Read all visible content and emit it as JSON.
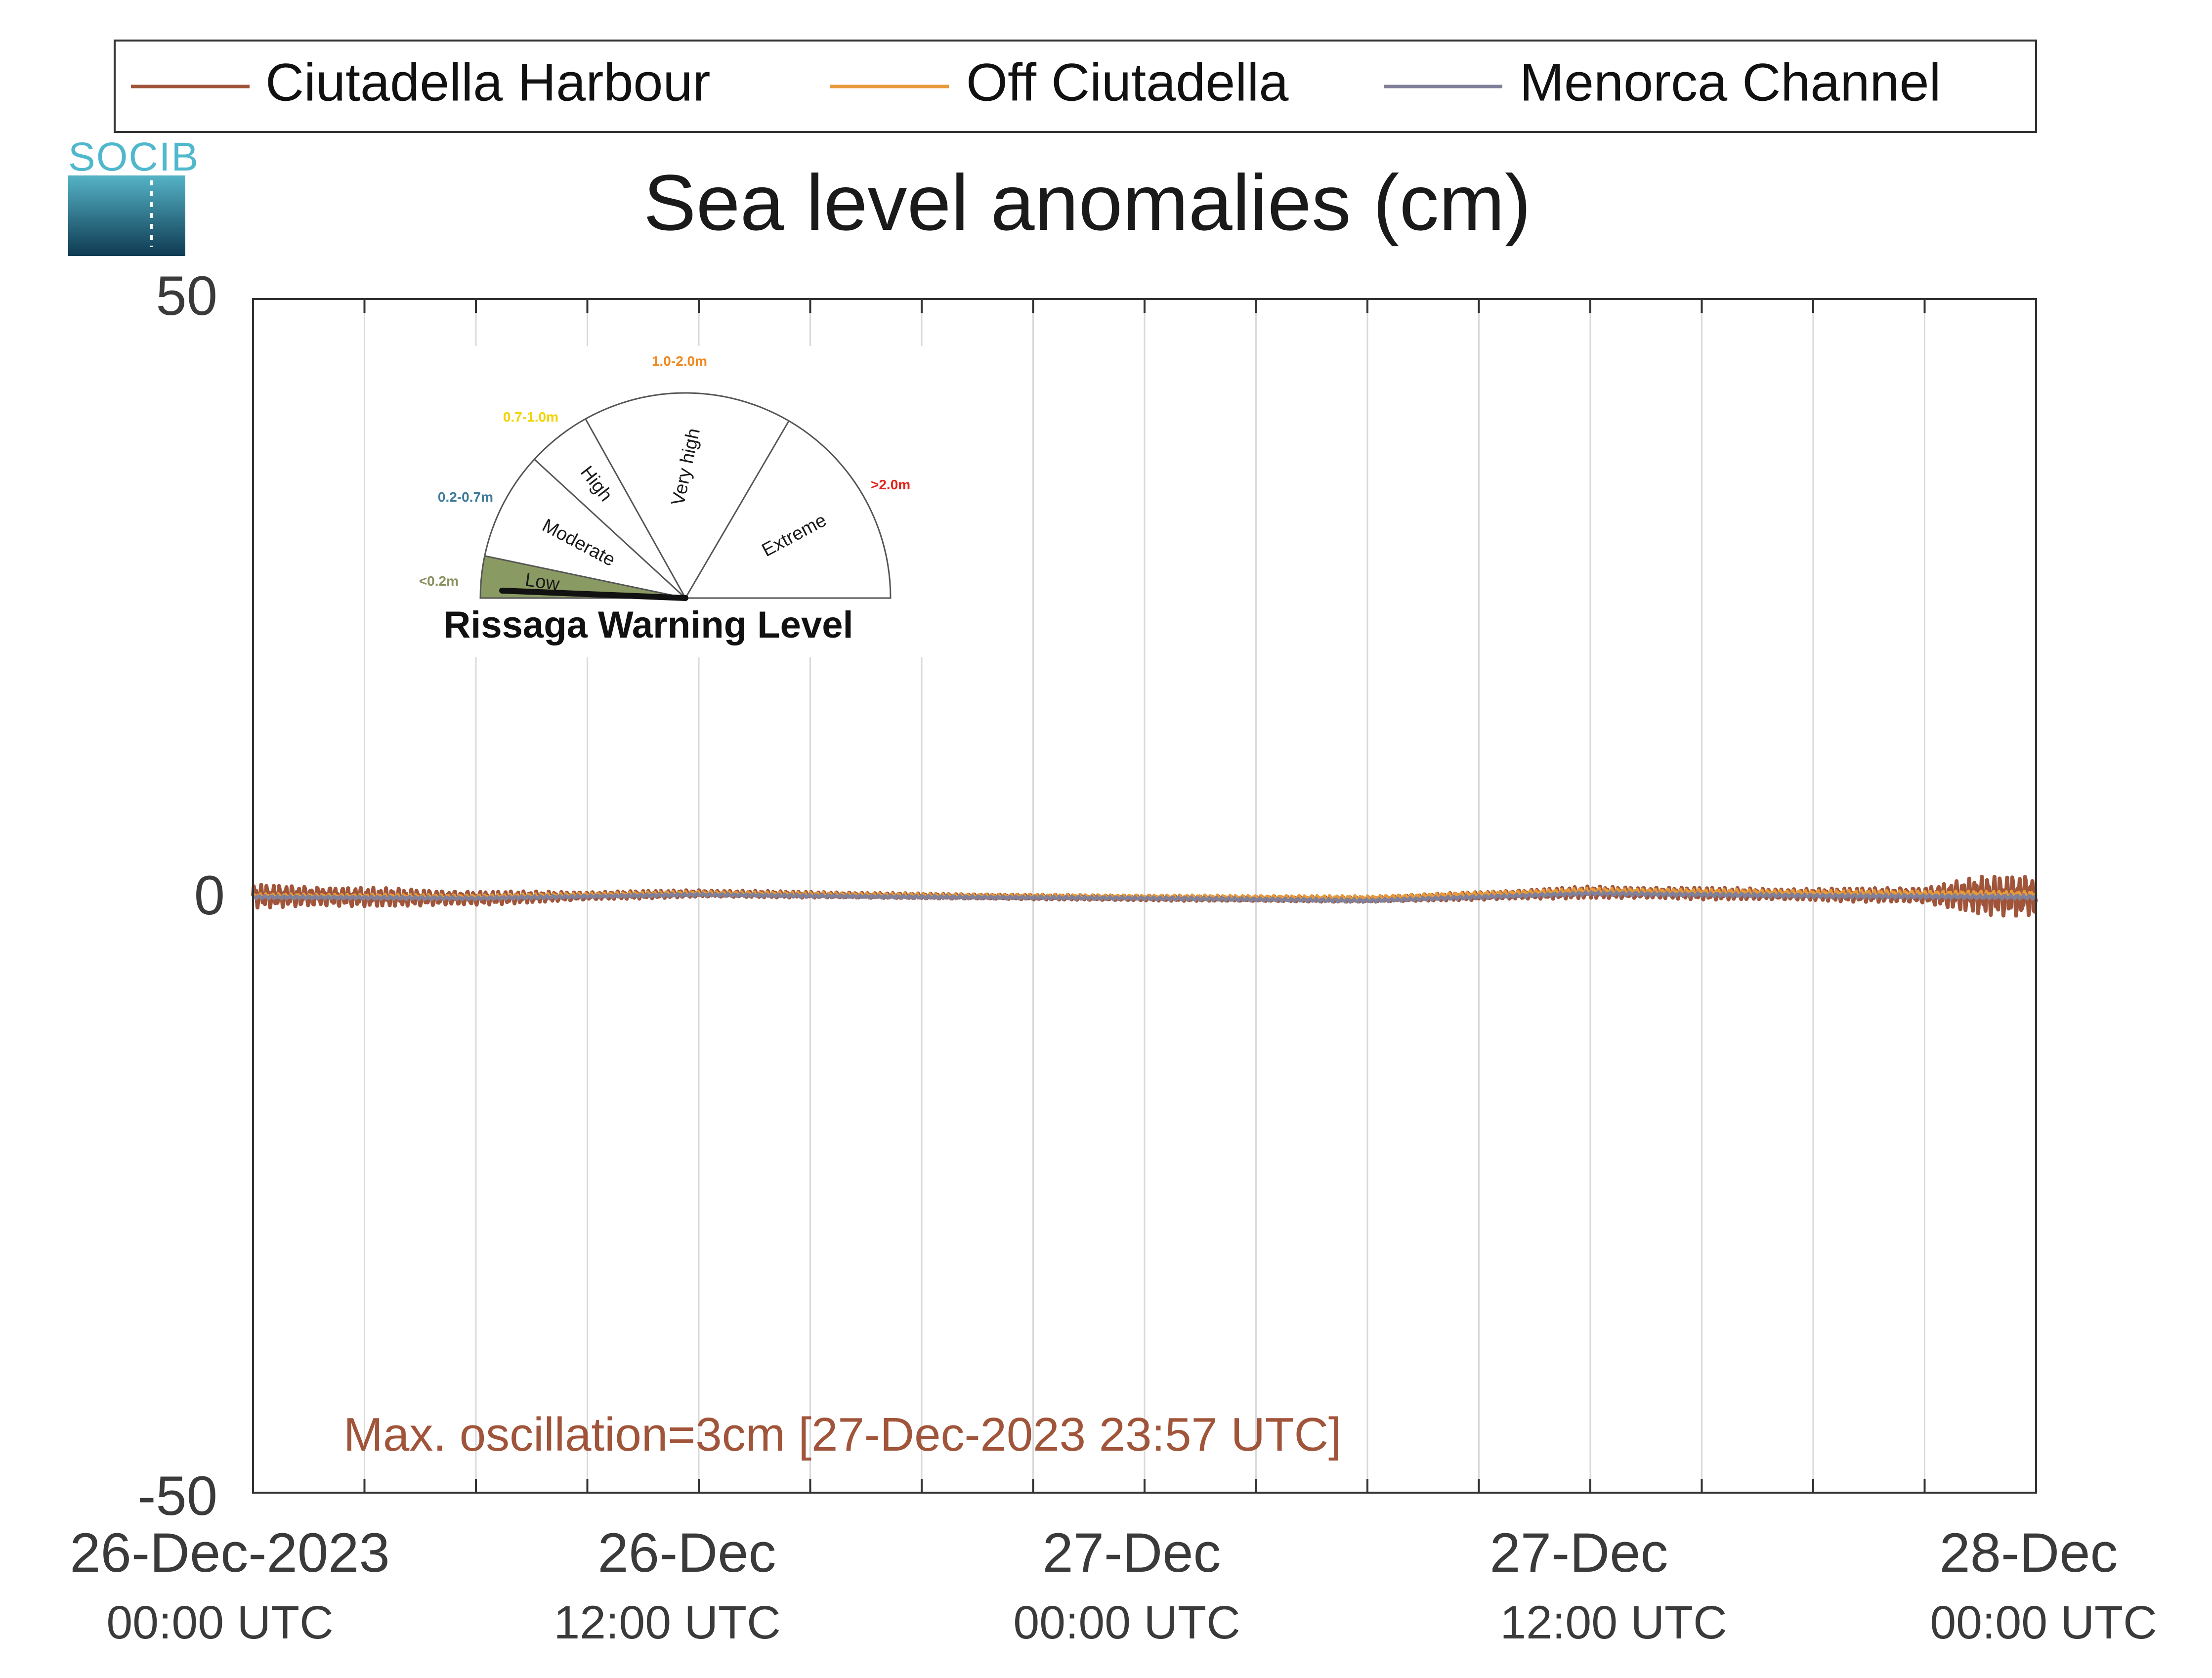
{
  "logo": {
    "text": "SOCIB"
  },
  "legend": {
    "items": [
      {
        "label": "Ciutadella Harbour",
        "color": "#a0553a"
      },
      {
        "label": "Off Ciutadella",
        "color": "#e89a3a"
      },
      {
        "label": "Menorca Channel",
        "color": "#80809a"
      }
    ]
  },
  "gauge": {
    "title": "Rissaga Warning Level",
    "sectors": [
      {
        "name": "Low",
        "range": "<0.2m",
        "range_color": "#8a8f5e",
        "fill": "#8a9a63",
        "active": true
      },
      {
        "name": "Moderate",
        "range": "0.2-0.7m",
        "range_color": "#3f7a9a",
        "fill": "#ffffff",
        "active": false
      },
      {
        "name": "High",
        "range": "0.7-1.0m",
        "range_color": "#f2d400",
        "fill": "#ffffff",
        "active": false
      },
      {
        "name": "Very high",
        "range": "1.0-2.0m",
        "range_color": "#f0891e",
        "fill": "#ffffff",
        "active": false
      },
      {
        "name": "Extreme",
        "range": ">2.0m",
        "range_color": "#e2231a",
        "fill": "#ffffff",
        "active": false
      }
    ]
  },
  "annotation": {
    "text": "Max. oscillation=3cm [27-Dec-2023 23:57 UTC]",
    "color": "#a0553a"
  },
  "chart_data": {
    "type": "line",
    "title": "Sea level anomalies (cm)",
    "xlabel": "",
    "ylabel": "",
    "ylim": [
      -50,
      50
    ],
    "xlim_hours": [
      0,
      48
    ],
    "y_ticks": [
      "50",
      "0",
      "-50"
    ],
    "y_tick_values": [
      50,
      0,
      -50
    ],
    "x_ticks": [
      {
        "hour": 0,
        "line1": "26-Dec-2023",
        "line2": "00:00 UTC"
      },
      {
        "hour": 12,
        "line1": "26-Dec",
        "line2": "12:00 UTC"
      },
      {
        "hour": 24,
        "line1": "27-Dec",
        "line2": "00:00 UTC"
      },
      {
        "hour": 36,
        "line1": "27-Dec",
        "line2": "12:00 UTC"
      },
      {
        "hour": 48,
        "line1": "28-Dec",
        "line2": "00:00 UTC"
      }
    ],
    "grid_vertical_every_hours": 3,
    "series": [
      {
        "name": "Ciutadella Harbour",
        "color": "#a0553a",
        "baseline": [
          [
            0,
            0
          ],
          [
            6,
            -0.2
          ],
          [
            12,
            0.2
          ],
          [
            18,
            0
          ],
          [
            24,
            -0.2
          ],
          [
            30,
            -0.3
          ],
          [
            36,
            0.3
          ],
          [
            42,
            0.1
          ],
          [
            48,
            0
          ]
        ],
        "oscillation_amplitude_cm": [
          [
            0,
            1.0
          ],
          [
            6,
            0.6
          ],
          [
            9,
            0.35
          ],
          [
            18,
            0.2
          ],
          [
            30,
            0.2
          ],
          [
            36,
            0.5
          ],
          [
            42,
            0.5
          ],
          [
            45,
            0.7
          ],
          [
            46.5,
            1.6
          ],
          [
            48,
            1.9
          ]
        ]
      },
      {
        "name": "Off Ciutadella",
        "color": "#e89a3a",
        "baseline": [
          [
            0,
            0
          ],
          [
            6,
            -0.1
          ],
          [
            12,
            0.2
          ],
          [
            18,
            0
          ],
          [
            24,
            -0.1
          ],
          [
            30,
            -0.2
          ],
          [
            36,
            0.4
          ],
          [
            42,
            0.2
          ],
          [
            48,
            0.1
          ]
        ],
        "oscillation_amplitude_cm": [
          [
            0,
            0.2
          ],
          [
            24,
            0.2
          ],
          [
            48,
            0.3
          ]
        ]
      },
      {
        "name": "Menorca Channel",
        "color": "#80809a",
        "baseline": [
          [
            0,
            -0.1
          ],
          [
            6,
            -0.2
          ],
          [
            12,
            0.1
          ],
          [
            18,
            -0.1
          ],
          [
            24,
            -0.2
          ],
          [
            30,
            -0.4
          ],
          [
            36,
            0.2
          ],
          [
            42,
            0.0
          ],
          [
            48,
            -0.1
          ]
        ],
        "oscillation_amplitude_cm": [
          [
            0,
            0.15
          ],
          [
            24,
            0.15
          ],
          [
            48,
            0.2
          ]
        ]
      }
    ]
  }
}
